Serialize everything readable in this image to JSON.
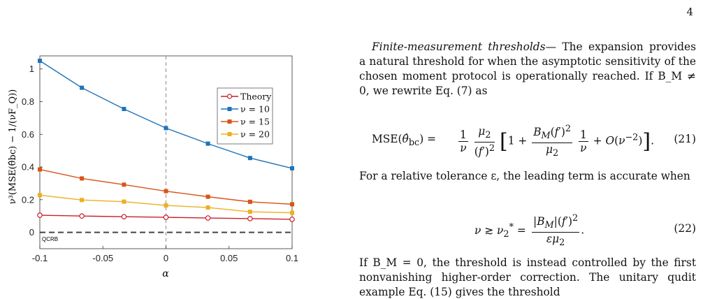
{
  "page_number": "4",
  "chart_data": {
    "type": "line",
    "xlabel": "α",
    "ylabel": "ν³(MSE(θ̂bc) − 1/(νF_Q))",
    "xlim": [
      -0.1,
      0.1
    ],
    "ylim": [
      -0.1,
      1.08
    ],
    "xticks": [
      "-0.1",
      "-0.05",
      "0",
      "0.05",
      "0.1"
    ],
    "yticks": [
      "0",
      "0.2",
      "0.4",
      "0.6",
      "0.8",
      "1"
    ],
    "x": [
      -0.1,
      -0.0667,
      -0.0333,
      0,
      0.0333,
      0.0667,
      0.1
    ],
    "series": [
      {
        "name": "Theory",
        "color": "#c8202a",
        "marker": "open-circle",
        "values": [
          0.105,
          0.1,
          0.096,
          0.092,
          0.088,
          0.084,
          0.08
        ]
      },
      {
        "name": "ν = 10",
        "color": "#1f73b8",
        "marker": "square",
        "values": [
          1.05,
          0.885,
          0.755,
          0.638,
          0.543,
          0.455,
          0.392
        ]
      },
      {
        "name": "ν = 15",
        "color": "#d9541a",
        "marker": "square",
        "values": [
          0.385,
          0.33,
          0.292,
          0.252,
          0.218,
          0.187,
          0.172
        ]
      },
      {
        "name": "ν = 20",
        "color": "#ecb01f",
        "marker": "square",
        "values": [
          0.228,
          0.198,
          0.188,
          0.165,
          0.152,
          0.126,
          0.12
        ]
      }
    ],
    "reference_line": {
      "label": "QCRB",
      "y": 0
    },
    "vertical_line_x": 0,
    "legend": "top-right"
  },
  "text": {
    "para1_heading": "Finite-measurement thresholds",
    "para1_body": "— The expansion provides a natural threshold for when the asymptotic sensitivity of the chosen moment protocol is operationally reached. If B_M ≠ 0, we rewrite Eq. (7) as",
    "eq21_number": "(21)",
    "para2": "For a relative tolerance ε, the leading term is accurate when",
    "eq22_number": "(22)",
    "para3": "If B_M = 0, the threshold is instead controlled by the first nonvanishing higher-order correction. The unitary qudit example Eq. (15) gives the threshold"
  }
}
